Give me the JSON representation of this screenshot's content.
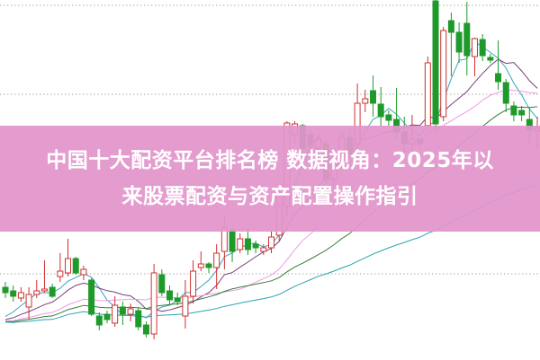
{
  "banner": {
    "title_line1": "中国十大配资平台排名榜 数据视角：2025年以",
    "title_line2": "来股票配资与资产配置操作指引"
  },
  "chart_data": {
    "type": "candlestick",
    "title": "",
    "xlabel": "",
    "ylabel": "",
    "ylim": [
      0,
      400
    ],
    "grid": "horizontal dotted",
    "up_color": "#d03030",
    "down_color": "#1f9a2a",
    "moving_averages": [
      {
        "period": 5,
        "color": "#3aa6b9"
      },
      {
        "period": 10,
        "color": "#7a3f7a"
      },
      {
        "period": 20,
        "color": "#ee9be6"
      },
      {
        "period": 30,
        "color": "#3a7d3a"
      },
      {
        "period": 60,
        "color": "#2aa3b3"
      }
    ],
    "ohlc": [
      [
        80,
        86,
        68,
        74
      ],
      [
        76,
        82,
        64,
        70
      ],
      [
        68,
        80,
        64,
        74
      ],
      [
        58,
        80,
        44,
        72
      ],
      [
        72,
        88,
        68,
        76
      ],
      [
        76,
        110,
        74,
        78
      ],
      [
        80,
        84,
        68,
        70
      ],
      [
        92,
        118,
        86,
        98
      ],
      [
        96,
        134,
        92,
        112
      ],
      [
        112,
        114,
        94,
        96
      ],
      [
        94,
        104,
        88,
        100
      ],
      [
        88,
        90,
        48,
        50
      ],
      [
        48,
        52,
        32,
        38
      ],
      [
        50,
        54,
        40,
        44
      ],
      [
        40,
        70,
        36,
        60
      ],
      [
        58,
        64,
        38,
        50
      ],
      [
        50,
        62,
        42,
        56
      ],
      [
        54,
        58,
        32,
        36
      ],
      [
        38,
        42,
        24,
        28
      ],
      [
        28,
        106,
        22,
        96
      ],
      [
        94,
        100,
        70,
        74
      ],
      [
        76,
        82,
        60,
        66
      ],
      [
        68,
        74,
        60,
        64
      ],
      [
        48,
        88,
        34,
        70
      ],
      [
        70,
        110,
        62,
        98
      ],
      [
        102,
        120,
        98,
        106
      ],
      [
        106,
        108,
        96,
        102
      ],
      [
        102,
        128,
        78,
        118
      ],
      [
        120,
        160,
        100,
        146
      ],
      [
        144,
        148,
        108,
        120
      ],
      [
        122,
        140,
        118,
        134
      ],
      [
        134,
        146,
        116,
        122
      ],
      [
        128,
        132,
        118,
        124
      ],
      [
        120,
        128,
        116,
        124
      ],
      [
        124,
        142,
        118,
        136
      ],
      [
        138,
        190,
        132,
        185
      ],
      [
        170,
        265,
        160,
        263
      ],
      [
        250,
        265,
        240,
        262
      ],
      [
        260,
        262,
        230,
        235
      ],
      [
        250,
        255,
        230,
        238
      ],
      [
        235,
        250,
        225,
        245
      ],
      [
        240,
        245,
        195,
        200
      ],
      [
        200,
        225,
        190,
        220
      ],
      [
        230,
        252,
        225,
        247
      ],
      [
        247,
        254,
        222,
        228
      ],
      [
        240,
        307,
        230,
        285
      ],
      [
        285,
        300,
        275,
        290
      ],
      [
        299,
        316,
        270,
        285
      ],
      [
        284,
        303,
        260,
        270
      ],
      [
        272,
        277,
        260,
        266
      ],
      [
        267,
        302,
        245,
        253
      ],
      [
        253,
        270,
        230,
        240
      ],
      [
        240,
        272,
        230,
        245
      ],
      [
        245,
        245,
        235,
        240
      ],
      [
        260,
        337,
        255,
        330
      ],
      [
        399,
        400,
        250,
        262
      ],
      [
        270,
        370,
        265,
        366
      ],
      [
        377,
        386,
        315,
        364
      ],
      [
        364,
        375,
        330,
        342
      ],
      [
        374,
        398,
        316,
        338
      ],
      [
        337,
        358,
        315,
        357
      ],
      [
        356,
        362,
        332,
        338
      ],
      [
        336,
        340,
        330,
        333
      ],
      [
        318,
        355,
        300,
        309
      ],
      [
        308,
        312,
        275,
        285
      ],
      [
        282,
        287,
        265,
        272
      ],
      [
        277,
        282,
        265,
        272
      ],
      [
        267,
        280,
        240,
        255
      ],
      [
        254,
        270,
        235,
        257
      ]
    ]
  }
}
